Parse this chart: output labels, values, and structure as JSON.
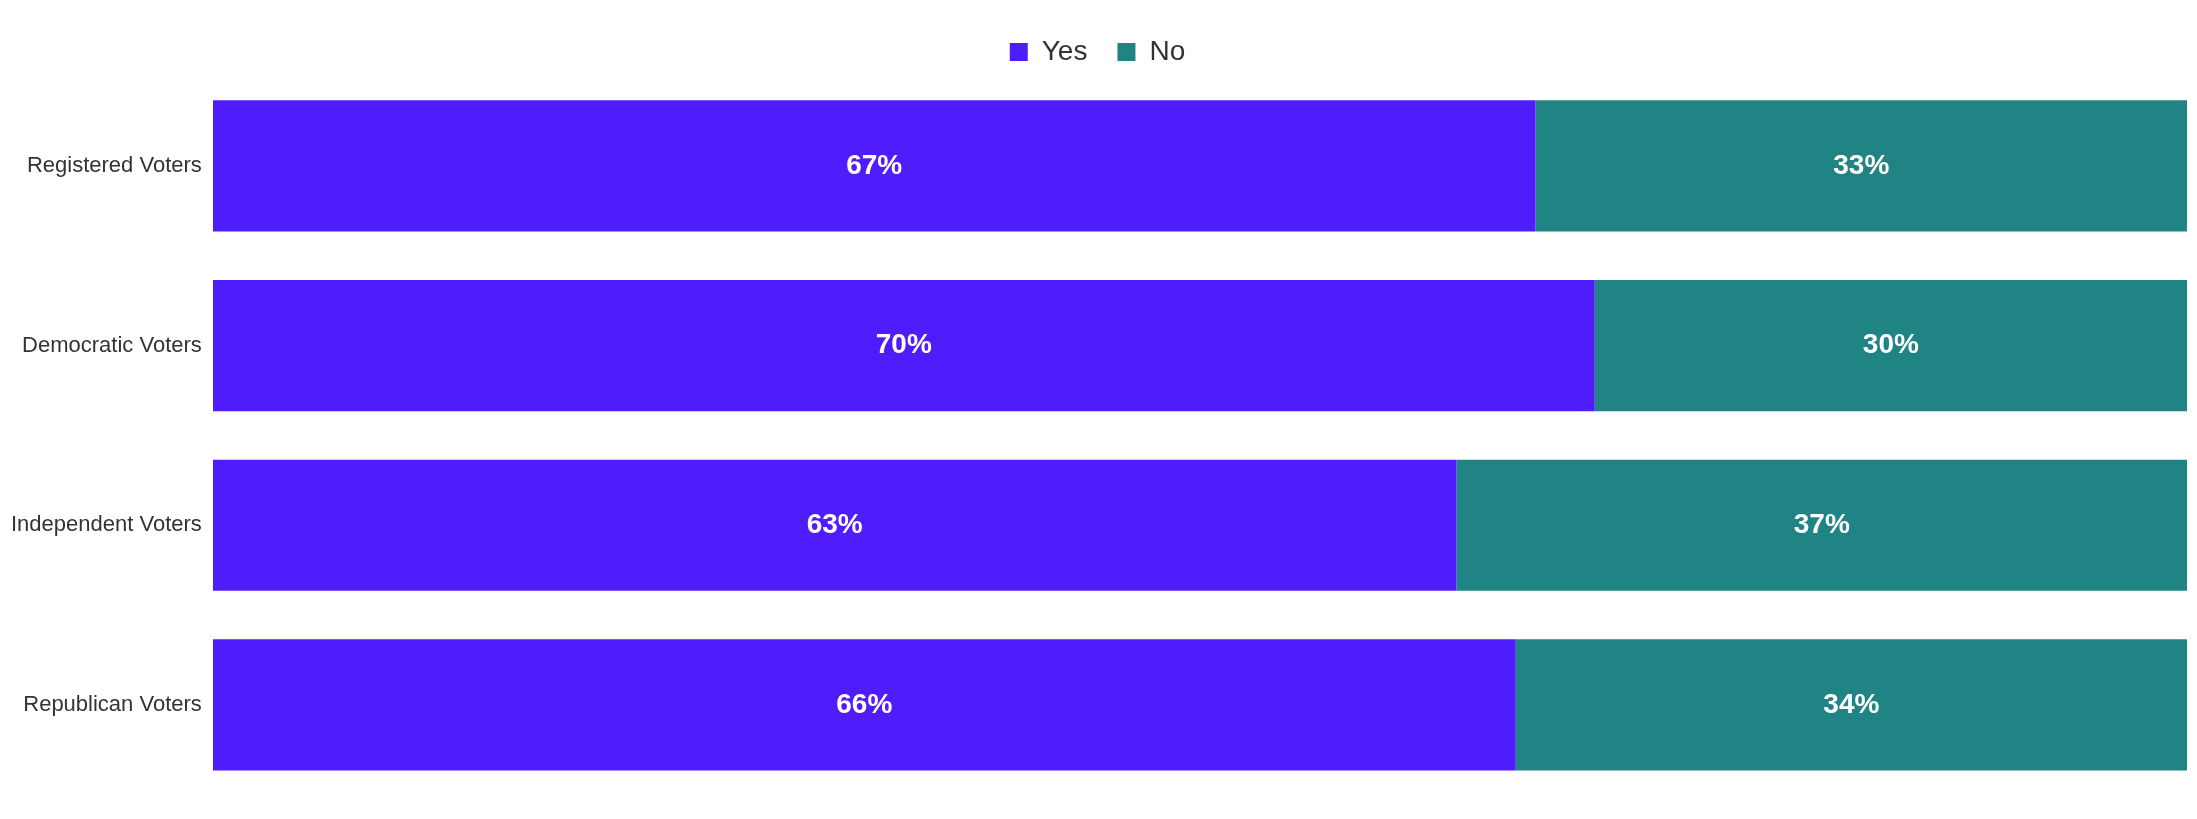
{
  "chart_data": {
    "type": "bar",
    "orientation": "horizontal",
    "stacked": true,
    "categories": [
      "Registered Voters",
      "Democratic Voters",
      "Independent Voters",
      "Republican Voters"
    ],
    "series": [
      {
        "name": "Yes",
        "color": "#4f1cfc",
        "values": [
          67,
          70,
          63,
          66
        ],
        "value_labels": [
          "67%",
          "70%",
          "63%",
          "66%"
        ]
      },
      {
        "name": "No",
        "color": "#218484",
        "values": [
          33,
          30,
          37,
          34
        ],
        "value_labels": [
          "33%",
          "30%",
          "37%",
          "34%"
        ]
      }
    ],
    "xlim": [
      0,
      100
    ],
    "tick_labels": "y",
    "legend": "top"
  }
}
